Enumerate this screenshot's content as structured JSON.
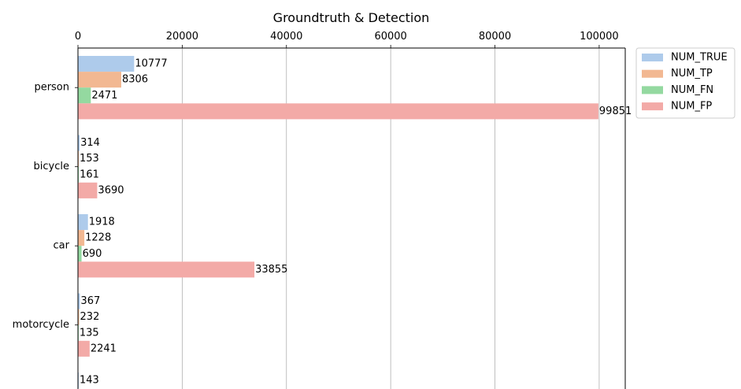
{
  "chart_data": {
    "type": "bar",
    "orientation": "horizontal",
    "title": "Groundtruth & Detection",
    "xlabel": "",
    "ylabel": "",
    "xlim": [
      0,
      105000
    ],
    "xticks": [
      0,
      20000,
      40000,
      60000,
      80000,
      100000
    ],
    "x_axis_position": "top",
    "grid": "vertical",
    "legend_placement": "outside-top-right",
    "categories": [
      "person",
      "bicycle",
      "car",
      "motorcycle",
      ""
    ],
    "series": [
      {
        "name": "NUM_TRUE",
        "color": "#aecbeb",
        "values": [
          10777,
          314,
          1918,
          367,
          143
        ]
      },
      {
        "name": "NUM_TP",
        "color": "#f2b892",
        "values": [
          8306,
          153,
          1228,
          232,
          null
        ]
      },
      {
        "name": "NUM_FN",
        "color": "#94d9a0",
        "values": [
          2471,
          161,
          690,
          135,
          null
        ]
      },
      {
        "name": "NUM_FP",
        "color": "#f3aaa7",
        "values": [
          99851,
          3690,
          33855,
          2241,
          null
        ]
      }
    ]
  }
}
